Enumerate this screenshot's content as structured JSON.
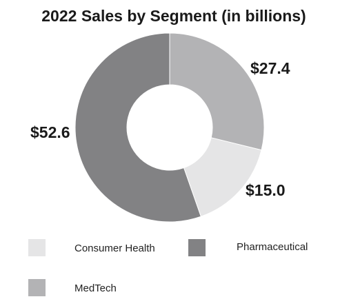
{
  "chart_data": {
    "type": "pie",
    "title": "2022 Sales by Segment (in billions)",
    "categories": [
      "MedTech",
      "Consumer Health",
      "Pharmaceutical"
    ],
    "values": [
      27.4,
      15.0,
      52.6
    ],
    "data_labels": [
      "$27.4",
      "$15.0",
      "$52.6"
    ],
    "colors": [
      "#b3b3b5",
      "#e5e5e6",
      "#828284"
    ],
    "legend": {
      "placement": "bottom",
      "entries": [
        "Consumer Health",
        "Pharmaceutical",
        "MedTech"
      ]
    },
    "donut": true
  }
}
